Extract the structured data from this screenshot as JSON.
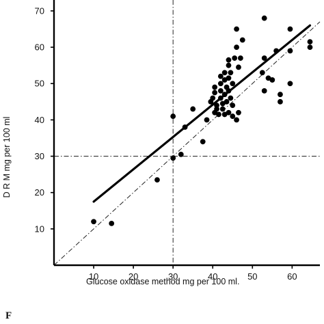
{
  "chart_data": {
    "type": "scatter",
    "xlabel": "Glucose oxidase method  mg per 100 ml.",
    "ylabel": "D R M   mg per 100 ml",
    "xlim": [
      0,
      67
    ],
    "ylim": [
      0,
      73
    ],
    "x_ticks": [
      10,
      20,
      30,
      40,
      50,
      60
    ],
    "y_ticks": [
      10,
      20,
      30,
      40,
      50,
      60,
      70
    ],
    "grid": false,
    "reference_lines": [
      {
        "orientation": "vertical",
        "value": 30,
        "style": "dash-dot"
      },
      {
        "orientation": "horizontal",
        "value": 30,
        "style": "dash-dot"
      },
      {
        "type": "identity",
        "style": "dash-dot"
      }
    ],
    "regression_line": {
      "from": [
        10,
        17.5
      ],
      "to": [
        64.5,
        66
      ]
    },
    "points": [
      {
        "x": 10,
        "y": 12
      },
      {
        "x": 14.5,
        "y": 11.5
      },
      {
        "x": 26,
        "y": 23.5
      },
      {
        "x": 30,
        "y": 41
      },
      {
        "x": 30,
        "y": 29.5
      },
      {
        "x": 32,
        "y": 30.5
      },
      {
        "x": 33,
        "y": 38
      },
      {
        "x": 35,
        "y": 43
      },
      {
        "x": 37.5,
        "y": 34
      },
      {
        "x": 38.5,
        "y": 40
      },
      {
        "x": 39.5,
        "y": 45
      },
      {
        "x": 40,
        "y": 46
      },
      {
        "x": 40.5,
        "y": 42
      },
      {
        "x": 40.5,
        "y": 47.5
      },
      {
        "x": 40.5,
        "y": 49
      },
      {
        "x": 41,
        "y": 44
      },
      {
        "x": 41,
        "y": 43
      },
      {
        "x": 41.5,
        "y": 41.5
      },
      {
        "x": 42,
        "y": 46
      },
      {
        "x": 42,
        "y": 48
      },
      {
        "x": 42,
        "y": 50
      },
      {
        "x": 42,
        "y": 52
      },
      {
        "x": 42.5,
        "y": 44.5
      },
      {
        "x": 42.5,
        "y": 43
      },
      {
        "x": 43,
        "y": 47
      },
      {
        "x": 43,
        "y": 51
      },
      {
        "x": 43,
        "y": 53
      },
      {
        "x": 43,
        "y": 41.5
      },
      {
        "x": 43.5,
        "y": 45
      },
      {
        "x": 43.5,
        "y": 49
      },
      {
        "x": 44,
        "y": 42
      },
      {
        "x": 44,
        "y": 48
      },
      {
        "x": 44,
        "y": 51.5
      },
      {
        "x": 44,
        "y": 55
      },
      {
        "x": 44,
        "y": 56.5
      },
      {
        "x": 44.5,
        "y": 53
      },
      {
        "x": 44.5,
        "y": 46
      },
      {
        "x": 45,
        "y": 50
      },
      {
        "x": 45,
        "y": 41
      },
      {
        "x": 45,
        "y": 44
      },
      {
        "x": 45.5,
        "y": 57
      },
      {
        "x": 46,
        "y": 65
      },
      {
        "x": 46,
        "y": 60
      },
      {
        "x": 46,
        "y": 40
      },
      {
        "x": 46.5,
        "y": 42
      },
      {
        "x": 46.5,
        "y": 54.5
      },
      {
        "x": 47,
        "y": 57
      },
      {
        "x": 47.5,
        "y": 62
      },
      {
        "x": 52.5,
        "y": 53
      },
      {
        "x": 53,
        "y": 68
      },
      {
        "x": 53,
        "y": 57
      },
      {
        "x": 53,
        "y": 48
      },
      {
        "x": 54,
        "y": 51.5
      },
      {
        "x": 55,
        "y": 51
      },
      {
        "x": 56,
        "y": 59
      },
      {
        "x": 57,
        "y": 47
      },
      {
        "x": 57,
        "y": 45
      },
      {
        "x": 59.5,
        "y": 65
      },
      {
        "x": 59.5,
        "y": 59
      },
      {
        "x": 59.5,
        "y": 50
      },
      {
        "x": 64.5,
        "y": 61.5
      },
      {
        "x": 64.5,
        "y": 60
      }
    ]
  },
  "caption": "F"
}
